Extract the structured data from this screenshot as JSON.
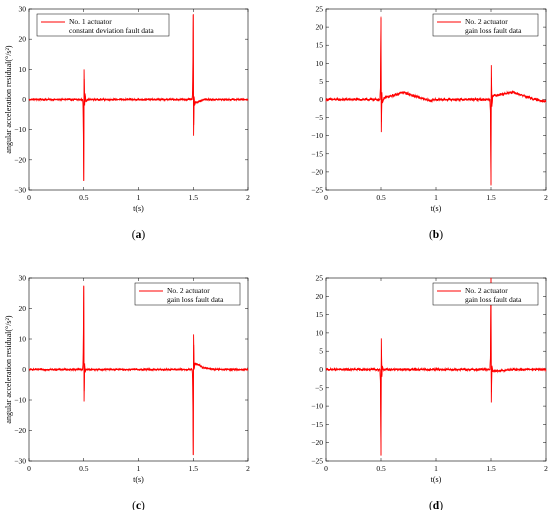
{
  "chart_data": [
    {
      "type": "line",
      "caption": "(a)",
      "caption_letter": "a",
      "xlabel": "t(s)",
      "ylabel": "angular acceleration residual(°/s²)",
      "xlim": [
        0,
        2
      ],
      "ylim": [
        -30,
        30
      ],
      "xticks": [
        0,
        0.5,
        1,
        1.5,
        2
      ],
      "yticks": [
        -30,
        -20,
        -10,
        0,
        10,
        20,
        30
      ],
      "xtick_labels": [
        "0",
        "0.5",
        "1",
        "1.5",
        "2"
      ],
      "ytick_labels": [
        "−30",
        "−20",
        "−10",
        "0",
        "10",
        "20",
        "30"
      ],
      "legend": {
        "placement": "top-left",
        "lines": [
          "No. 1 actuator",
          "constant deviation fault data"
        ]
      },
      "series": [
        {
          "color": "#ff0000",
          "noise": 0.35,
          "x": [
            0,
            0.49,
            0.495,
            0.5,
            0.503,
            0.508,
            0.512,
            0.52,
            0.54,
            1.49,
            1.495,
            1.5,
            1.503,
            1.508,
            1.512,
            1.52,
            1.6,
            2
          ],
          "y": [
            0,
            0,
            -3,
            -27,
            10,
            -2,
            2,
            -0.5,
            0,
            0,
            3,
            28,
            -12,
            1,
            -2,
            -1,
            0,
            0
          ]
        }
      ]
    },
    {
      "type": "line",
      "caption": "(b)",
      "caption_letter": "b",
      "xlabel": "t(s)",
      "ylabel": "",
      "xlim": [
        0,
        2
      ],
      "ylim": [
        -25,
        25
      ],
      "xticks": [
        0,
        0.5,
        1,
        1.5,
        2
      ],
      "yticks": [
        -25,
        -20,
        -15,
        -10,
        -5,
        0,
        5,
        10,
        15,
        20,
        25
      ],
      "xtick_labels": [
        "0",
        "0.5",
        "1",
        "1.5",
        "2"
      ],
      "ytick_labels": [
        "−25",
        "−20",
        "−15",
        "−10",
        "−5",
        "0",
        "5",
        "10",
        "15",
        "20",
        "25"
      ],
      "legend": {
        "placement": "top-right",
        "lines": [
          "No. 2 actuator",
          "gain loss fault data"
        ]
      },
      "series": [
        {
          "color": "#ff0000",
          "noise": 0.4,
          "x": [
            0,
            0.49,
            0.495,
            0.5,
            0.503,
            0.508,
            0.512,
            0.53,
            0.6,
            0.7,
            0.8,
            0.9,
            0.95,
            1.0,
            1.2,
            1.49,
            1.495,
            1.5,
            1.503,
            1.508,
            1.515,
            1.6,
            1.7,
            1.8,
            1.9,
            2
          ],
          "y": [
            0,
            0,
            3,
            22.5,
            -9,
            2,
            -1,
            0.5,
            1,
            2,
            1,
            0,
            -0.3,
            0,
            0,
            0,
            -3,
            -23.5,
            9.5,
            -2,
            1,
            1.5,
            2,
            1,
            0,
            -0.5
          ]
        }
      ]
    },
    {
      "type": "line",
      "caption": "(c)",
      "caption_letter": "c",
      "xlabel": "t(s)",
      "ylabel": "angular acceleration residual(°/s²)",
      "xlim": [
        0,
        2
      ],
      "ylim": [
        -30,
        30
      ],
      "xticks": [
        0,
        0.5,
        1,
        1.5,
        2
      ],
      "yticks": [
        -30,
        -20,
        -10,
        0,
        10,
        20,
        30
      ],
      "xtick_labels": [
        "0",
        "0.5",
        "1",
        "1.5",
        "2"
      ],
      "ytick_labels": [
        "−30",
        "−20",
        "−10",
        "0",
        "10",
        "20",
        "30"
      ],
      "legend": {
        "placement": "top-right",
        "lines": [
          "No. 2 actuator",
          "gain loss fault data"
        ]
      },
      "series": [
        {
          "color": "#ff0000",
          "noise": 0.35,
          "x": [
            0,
            0.49,
            0.495,
            0.5,
            0.503,
            0.508,
            0.512,
            0.52,
            0.6,
            1.49,
            1.495,
            1.5,
            1.503,
            1.508,
            1.515,
            1.55,
            1.6,
            1.7,
            2
          ],
          "y": [
            0,
            0,
            3,
            27.5,
            -10.5,
            2,
            -1,
            0,
            0,
            0,
            -3,
            -28,
            11.5,
            0,
            2,
            1.5,
            0.5,
            0,
            0
          ]
        }
      ]
    },
    {
      "type": "line",
      "caption": "(d)",
      "caption_letter": "d",
      "xlabel": "t(s)",
      "ylabel": "",
      "xlim": [
        0,
        2
      ],
      "ylim": [
        -25,
        25
      ],
      "xticks": [
        0,
        0.5,
        1,
        1.5,
        2
      ],
      "yticks": [
        -25,
        -20,
        -15,
        -10,
        -5,
        0,
        5,
        10,
        15,
        20,
        25
      ],
      "xtick_labels": [
        "0",
        "0.5",
        "1",
        "1.5",
        "2"
      ],
      "ytick_labels": [
        "−25",
        "−20",
        "−15",
        "−10",
        "−5",
        "0",
        "5",
        "10",
        "15",
        "20",
        "25"
      ],
      "legend": {
        "placement": "top-right",
        "lines": [
          "No. 2 actuator",
          "gain loss fault data"
        ]
      },
      "series": [
        {
          "color": "#ff0000",
          "noise": 0.35,
          "x": [
            0,
            0.49,
            0.495,
            0.5,
            0.503,
            0.508,
            0.512,
            0.52,
            0.6,
            1.49,
            1.495,
            1.5,
            1.503,
            1.508,
            1.515,
            1.6,
            1.7,
            2
          ],
          "y": [
            0,
            0,
            -3,
            -23.5,
            8.5,
            -2,
            1,
            0,
            0,
            0,
            3,
            25,
            -9,
            1,
            -0.5,
            -0.3,
            0,
            0
          ]
        }
      ]
    }
  ]
}
